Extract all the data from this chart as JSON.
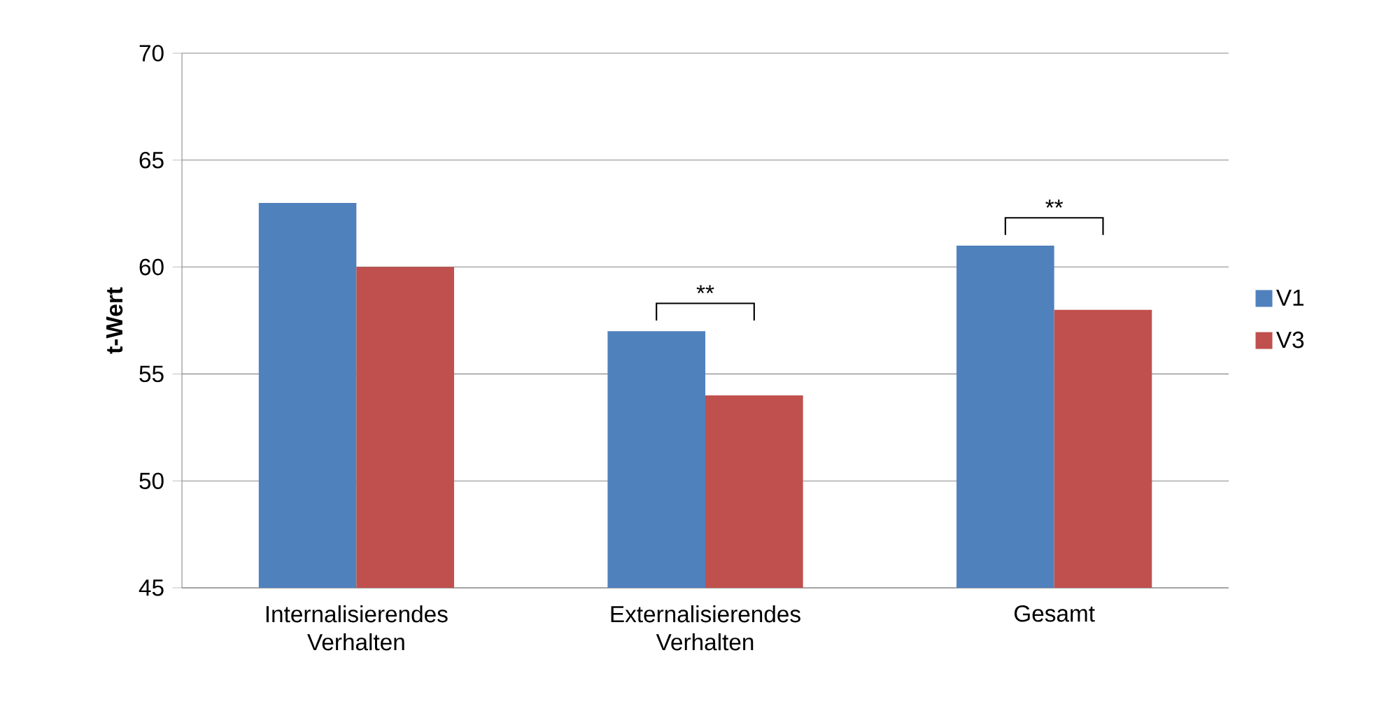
{
  "chart_data": {
    "type": "bar",
    "ylabel": "t-Wert",
    "categories": [
      "Internalisierendes Verhalten",
      "Externalisierendes Verhalten",
      "Gesamt"
    ],
    "series": [
      {
        "name": "V1",
        "color": "#4f81bd",
        "values": [
          63,
          57,
          61
        ]
      },
      {
        "name": "V3",
        "color": "#c0504d",
        "values": [
          60,
          54,
          58
        ]
      }
    ],
    "ylim": [
      45,
      70
    ],
    "yticks": [
      45,
      50,
      55,
      60,
      65,
      70
    ],
    "grid": "y",
    "legend": "right",
    "annotations": [
      "**",
      "**"
    ]
  }
}
